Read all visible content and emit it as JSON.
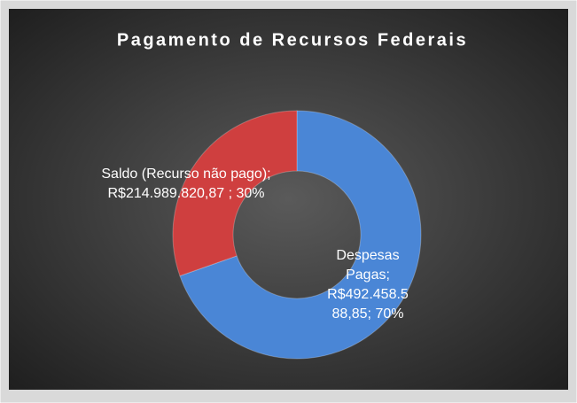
{
  "chart_data": {
    "type": "donut",
    "title": "Pagamento de Recursos Federais",
    "categories": [
      "Despesas Pagas",
      "Saldo (Recurso não pago)"
    ],
    "values": [
      492458588.85,
      214989820.87
    ],
    "value_labels": [
      "Despesas Pagas; R$492.458.588,85; 70%",
      "Saldo (Recurso não pago); R$214.989.820,87 ; 30%"
    ],
    "colors": [
      "#4a86d6",
      "#cf3f3f"
    ]
  }
}
